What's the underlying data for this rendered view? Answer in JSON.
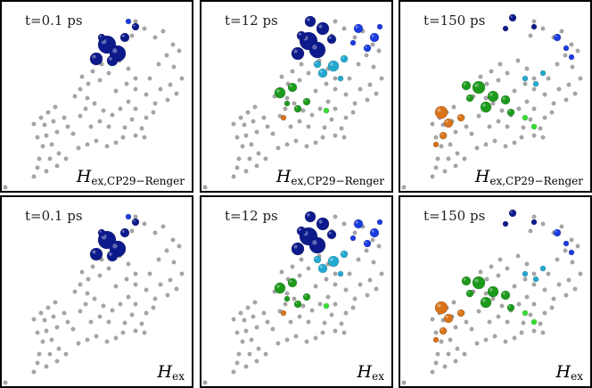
{
  "panels": [
    {
      "time": "t=0.1 ps",
      "label_main": "H",
      "label_sub": "ex,CP29−Renger",
      "phase": "t0"
    },
    {
      "time": "t=12 ps",
      "label_main": "H",
      "label_sub": "ex,CP29−Renger",
      "phase": "t12"
    },
    {
      "time": "t=150 ps",
      "label_main": "H",
      "label_sub": "ex,CP29−Renger",
      "phase": "t150"
    },
    {
      "time": "t=0.1 ps",
      "label_main": "H",
      "label_sub": "ex",
      "phase": "t0"
    },
    {
      "time": "t=12 ps",
      "label_main": "H",
      "label_sub": "ex",
      "phase": "t12"
    },
    {
      "time": "t=150 ps",
      "label_main": "H",
      "label_sub": "ex",
      "phase": "t150"
    }
  ],
  "colors": {
    "dark_blue": "#0d1a8c",
    "blue": "#1a3be0",
    "cyan": "#22a9d0",
    "green": "#1c9a1c",
    "light_green": "#33e033",
    "orange": "#d9731a",
    "gray": "#a8a8a8",
    "frame": "#000000"
  }
}
